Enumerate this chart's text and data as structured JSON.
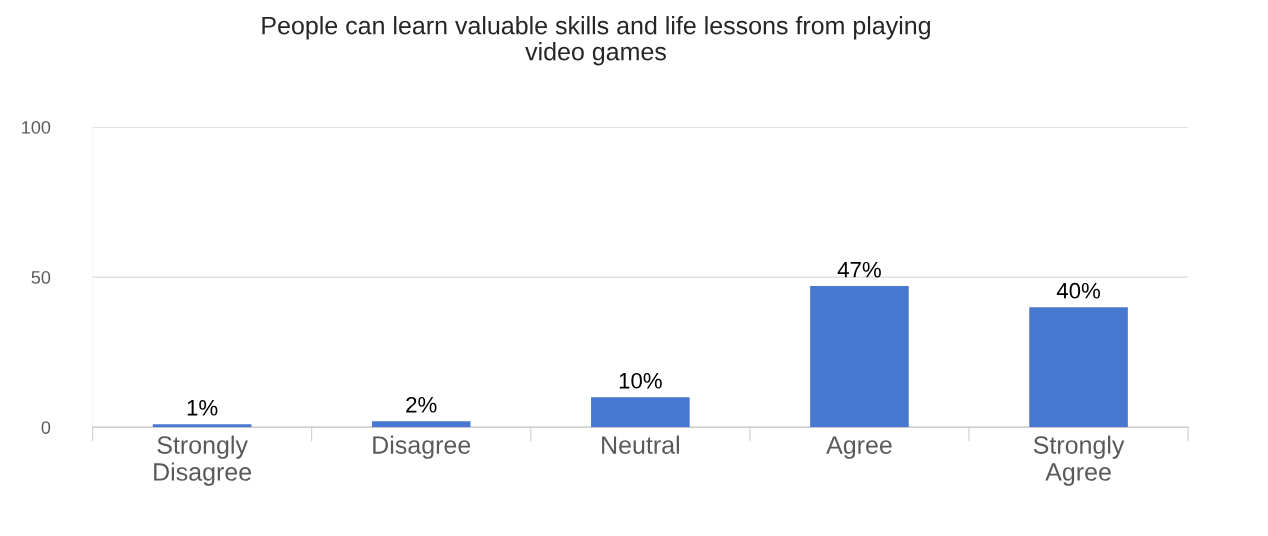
{
  "chart_data": {
    "type": "bar",
    "title": "People can learn valuable skills and life lessons from playing\nvideo games",
    "categories": [
      "Strongly\nDisagree",
      "Disagree",
      "Neutral",
      "Agree",
      "Strongly\nAgree"
    ],
    "values": [
      1,
      2,
      10,
      47,
      40
    ],
    "value_labels": [
      "1%",
      "2%",
      "10%",
      "47%",
      "40%"
    ],
    "color": "#4878cf",
    "ylim": [
      0,
      100
    ],
    "yticks": [
      0,
      50,
      100
    ],
    "grid": "y",
    "legend": false
  }
}
